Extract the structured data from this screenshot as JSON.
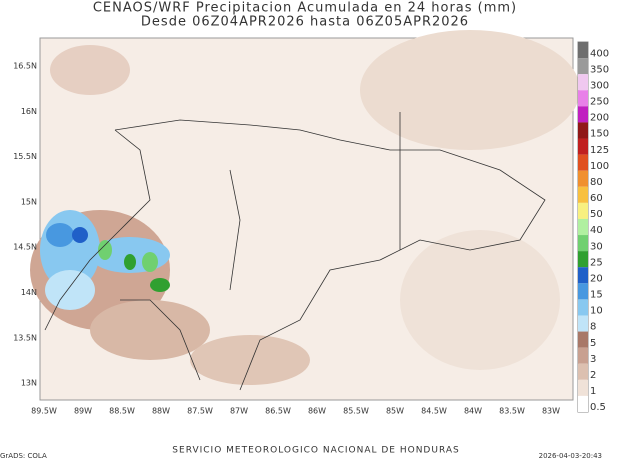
{
  "header": {
    "title": "CENAOS/WRF Precipitacion Acumulada en 24 horas (mm)",
    "subtitle": "Desde 06Z04APR2026 hasta 06Z05APR2026"
  },
  "map": {
    "lon_labels": [
      "89.5W",
      "89W",
      "88.5W",
      "88W",
      "87.5W",
      "87W",
      "86.5W",
      "86W",
      "85.5W",
      "85W",
      "84.5W",
      "84W",
      "83.5W",
      "83W"
    ],
    "lat_labels": [
      "16.5N",
      "16N",
      "15.5N",
      "15N",
      "14.5N",
      "14N",
      "13.5N",
      "13N"
    ]
  },
  "legend": [
    {
      "label": "400",
      "color": "#6e6e6e"
    },
    {
      "label": "350",
      "color": "#9a9a9a"
    },
    {
      "label": "300",
      "color": "#f0c8f0"
    },
    {
      "label": "250",
      "color": "#e880e8"
    },
    {
      "label": "200",
      "color": "#c020c0"
    },
    {
      "label": "150",
      "color": "#901818"
    },
    {
      "label": "125",
      "color": "#c02020"
    },
    {
      "label": "100",
      "color": "#e05020"
    },
    {
      "label": "80",
      "color": "#f09030"
    },
    {
      "label": "60",
      "color": "#f8c040"
    },
    {
      "label": "50",
      "color": "#f8f080"
    },
    {
      "label": "40",
      "color": "#b0f0a0"
    },
    {
      "label": "30",
      "color": "#70d070"
    },
    {
      "label": "25",
      "color": "#30a030"
    },
    {
      "label": "20",
      "color": "#2060c8"
    },
    {
      "label": "15",
      "color": "#4898e0"
    },
    {
      "label": "10",
      "color": "#88c8f0"
    },
    {
      "label": "8",
      "color": "#c0e4f8"
    },
    {
      "label": "5",
      "color": "#a87868"
    },
    {
      "label": "3",
      "color": "#c8a090"
    },
    {
      "label": "2",
      "color": "#dcc0b0"
    },
    {
      "label": "1",
      "color": "#f0e2d8"
    },
    {
      "label": "0.5",
      "color": "#ffffff"
    }
  ],
  "footer": {
    "agency": "SERVICIO METEOROLOGICO NACIONAL DE HONDURAS",
    "timestamp": "2026-04-03-20:43",
    "software": "GrADS: COLA"
  }
}
